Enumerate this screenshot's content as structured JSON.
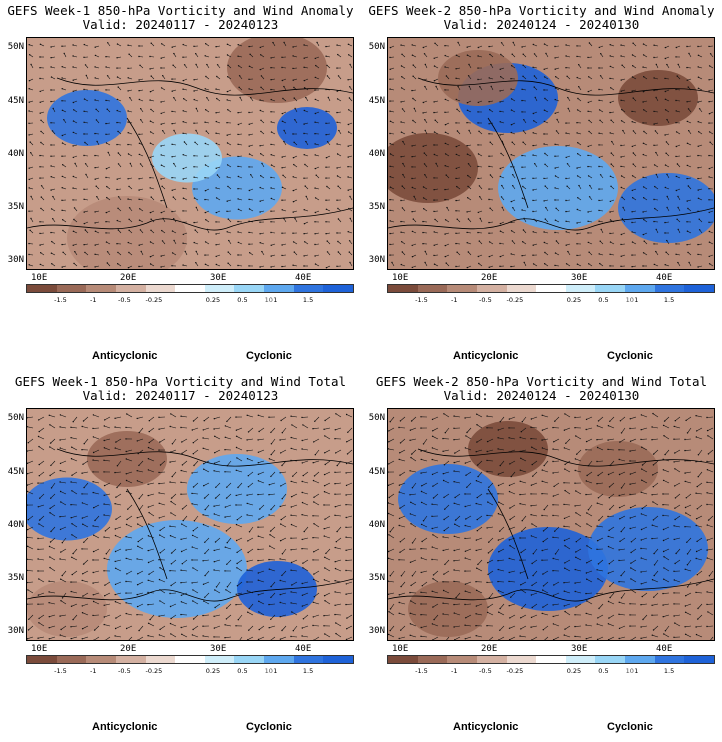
{
  "colors": {
    "anticyclonic": "#7a4a3a",
    "cyclonic": "#1e62d8",
    "bar": [
      "#7b4b3b",
      "#9a6a58",
      "#b78b78",
      "#d4b1a2",
      "#ecd9d0",
      "#ffffff",
      "#cfeefa",
      "#99d6f6",
      "#5ea8ef",
      "#2f74df",
      "#1e62d8"
    ]
  },
  "colorbar_ticks": [
    "-1.5",
    "-1",
    "-0.5",
    "-0.25",
    "0.25",
    "0.5",
    "1",
    "1.5"
  ],
  "colorbar_extra": "10",
  "lat_labels": [
    "50N",
    "45N",
    "40N",
    "35N",
    "30N"
  ],
  "lon_labels": [
    "10E",
    "20E",
    "30E",
    "40E"
  ],
  "legend": {
    "anticyclonic": "Anticyclonic",
    "cyclonic": "Cyclonic"
  },
  "panels": [
    {
      "title": "GEFS Week-1 850-hPa Vorticity and Wind Anomaly",
      "valid": "Valid: 20240117 - 20240123"
    },
    {
      "title": "GEFS Week-2 850-hPa Vorticity and Wind Anomaly",
      "valid": "Valid: 20240124 - 20240130"
    },
    {
      "title": "GEFS Week-1 850-hPa Vorticity and Wind Total",
      "valid": "Valid: 20240117 - 20240123"
    },
    {
      "title": "GEFS Week-2 850-hPa Vorticity and Wind Total",
      "valid": "Valid: 20240124 - 20240130"
    }
  ]
}
